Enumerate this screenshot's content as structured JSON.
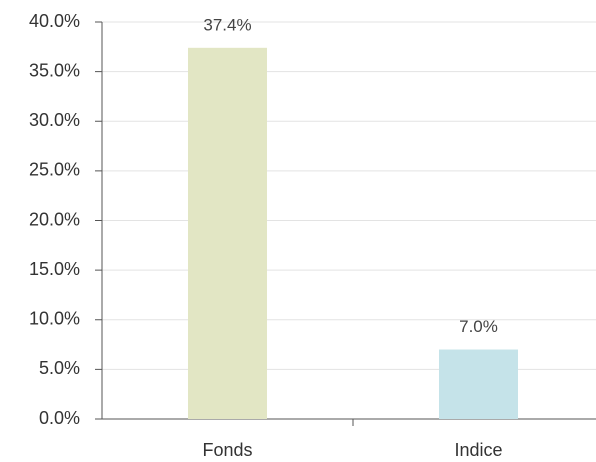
{
  "chart_data": {
    "type": "bar",
    "categories": [
      "Fonds",
      "Indice"
    ],
    "values": [
      37.4,
      7.0
    ],
    "value_labels": [
      "37.4%",
      "7.0%"
    ],
    "colors": [
      "#e2e6c4",
      "#c5e3e9"
    ],
    "ylim": [
      0,
      40
    ],
    "yticks": [
      {
        "value": 0,
        "label": "0.0%"
      },
      {
        "value": 5,
        "label": "5.0%"
      },
      {
        "value": 10,
        "label": "10.0%"
      },
      {
        "value": 15,
        "label": "15.0%"
      },
      {
        "value": 20,
        "label": "20.0%"
      },
      {
        "value": 25,
        "label": "25.0%"
      },
      {
        "value": 30,
        "label": "30.0%"
      },
      {
        "value": 35,
        "label": "35.0%"
      },
      {
        "value": 40,
        "label": "40.0%"
      }
    ],
    "grid": true
  }
}
